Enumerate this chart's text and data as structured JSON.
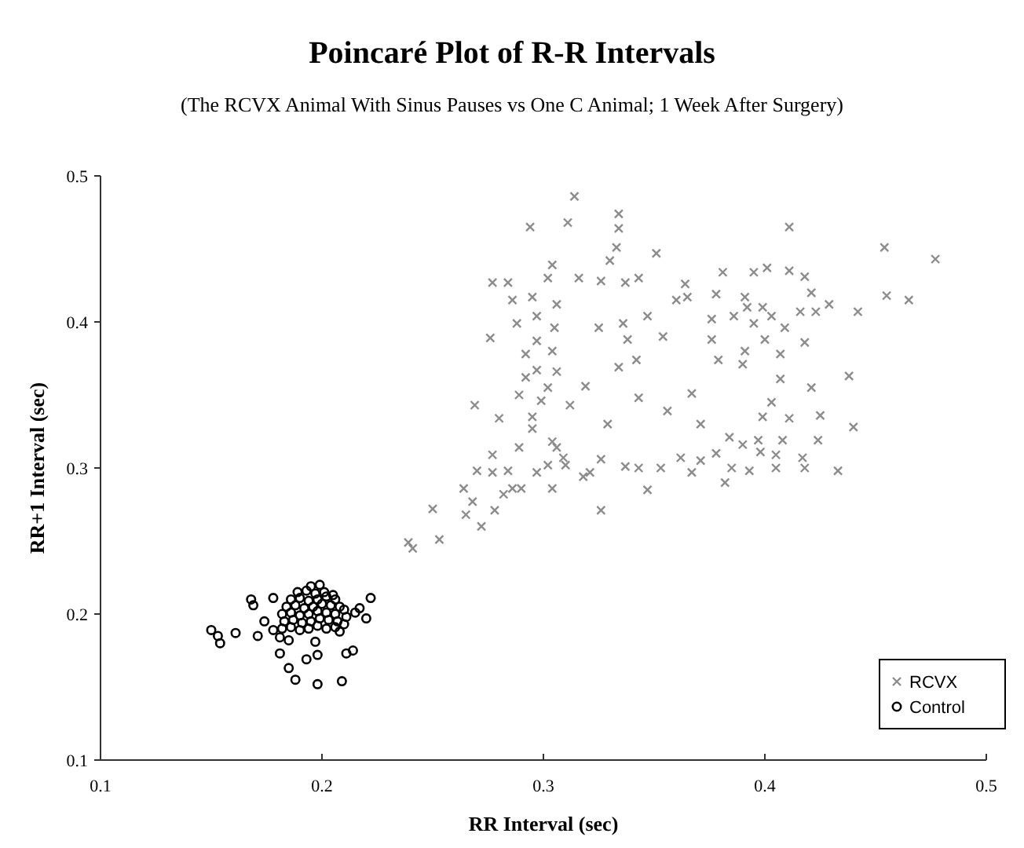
{
  "chart_data": {
    "type": "scatter",
    "title": "Poincaré Plot of R-R Intervals",
    "subtitle": "(The RCVX Animal With Sinus Pauses vs One C Animal; 1 Week After Surgery)",
    "xlabel": "RR  Interval (sec)",
    "ylabel": "RR+1  Interval (sec)",
    "xlim": [
      0.1,
      0.5
    ],
    "ylim": [
      0.1,
      0.5
    ],
    "xticks": [
      0.1,
      0.2,
      0.3,
      0.4,
      0.5
    ],
    "yticks": [
      0.1,
      0.2,
      0.3,
      0.4,
      0.5
    ],
    "grid": false,
    "legend": "bottom right",
    "series": [
      {
        "name": "RCVX",
        "color": "#8c8c8c",
        "marker": "cross",
        "x": [
          0.314,
          0.294,
          0.311,
          0.334,
          0.334,
          0.333,
          0.351,
          0.33,
          0.411,
          0.454,
          0.477,
          0.277,
          0.284,
          0.304,
          0.302,
          0.316,
          0.326,
          0.337,
          0.343,
          0.286,
          0.295,
          0.306,
          0.288,
          0.297,
          0.276,
          0.305,
          0.325,
          0.336,
          0.347,
          0.338,
          0.354,
          0.36,
          0.365,
          0.364,
          0.381,
          0.395,
          0.401,
          0.411,
          0.418,
          0.378,
          0.391,
          0.386,
          0.392,
          0.403,
          0.399,
          0.421,
          0.429,
          0.423,
          0.442,
          0.416,
          0.455,
          0.465,
          0.376,
          0.395,
          0.409,
          0.376,
          0.4,
          0.418,
          0.391,
          0.379,
          0.39,
          0.407,
          0.407,
          0.438,
          0.421,
          0.403,
          0.399,
          0.411,
          0.425,
          0.44,
          0.424,
          0.397,
          0.384,
          0.39,
          0.398,
          0.405,
          0.408,
          0.417,
          0.418,
          0.433,
          0.405,
          0.393,
          0.385,
          0.382,
          0.378,
          0.371,
          0.367,
          0.362,
          0.371,
          0.367,
          0.356,
          0.343,
          0.329,
          0.334,
          0.342,
          0.319,
          0.312,
          0.306,
          0.297,
          0.292,
          0.304,
          0.297,
          0.292,
          0.289,
          0.299,
          0.302,
          0.295,
          0.28,
          0.269,
          0.295,
          0.289,
          0.277,
          0.304,
          0.31,
          0.302,
          0.297,
          0.29,
          0.284,
          0.282,
          0.277,
          0.27,
          0.264,
          0.268,
          0.278,
          0.265,
          0.272,
          0.25,
          0.253,
          0.239,
          0.241,
          0.309,
          0.306,
          0.318,
          0.321,
          0.326,
          0.326,
          0.337,
          0.343,
          0.347,
          0.353,
          0.304,
          0.286
        ],
        "values": [
          0.486,
          0.465,
          0.468,
          0.474,
          0.464,
          0.451,
          0.447,
          0.442,
          0.465,
          0.451,
          0.443,
          0.427,
          0.427,
          0.439,
          0.43,
          0.43,
          0.428,
          0.427,
          0.43,
          0.415,
          0.417,
          0.412,
          0.399,
          0.404,
          0.389,
          0.396,
          0.396,
          0.399,
          0.404,
          0.388,
          0.39,
          0.415,
          0.417,
          0.426,
          0.434,
          0.434,
          0.437,
          0.435,
          0.431,
          0.419,
          0.417,
          0.404,
          0.41,
          0.404,
          0.41,
          0.42,
          0.412,
          0.407,
          0.407,
          0.407,
          0.418,
          0.415,
          0.402,
          0.399,
          0.396,
          0.388,
          0.388,
          0.386,
          0.38,
          0.374,
          0.371,
          0.378,
          0.361,
          0.363,
          0.355,
          0.345,
          0.335,
          0.334,
          0.336,
          0.328,
          0.319,
          0.319,
          0.321,
          0.316,
          0.311,
          0.309,
          0.319,
          0.307,
          0.3,
          0.298,
          0.3,
          0.298,
          0.3,
          0.29,
          0.31,
          0.305,
          0.297,
          0.307,
          0.33,
          0.351,
          0.339,
          0.348,
          0.33,
          0.369,
          0.374,
          0.356,
          0.343,
          0.366,
          0.367,
          0.378,
          0.38,
          0.387,
          0.362,
          0.35,
          0.346,
          0.355,
          0.335,
          0.334,
          0.343,
          0.327,
          0.314,
          0.309,
          0.318,
          0.302,
          0.302,
          0.297,
          0.286,
          0.298,
          0.282,
          0.297,
          0.298,
          0.286,
          0.277,
          0.271,
          0.268,
          0.26,
          0.272,
          0.251,
          0.249,
          0.245,
          0.307,
          0.314,
          0.294,
          0.297,
          0.306,
          0.271,
          0.301,
          0.3,
          0.285,
          0.3,
          0.286,
          0.286
        ]
      },
      {
        "name": "Control",
        "color": "#000000",
        "marker": "circle",
        "x": [
          0.15,
          0.153,
          0.154,
          0.161,
          0.168,
          0.169,
          0.171,
          0.174,
          0.178,
          0.181,
          0.185,
          0.188,
          0.193,
          0.198,
          0.198,
          0.209,
          0.211,
          0.214,
          0.22,
          0.222,
          0.217,
          0.178,
          0.181,
          0.185,
          0.197,
          0.208,
          0.215,
          0.182,
          0.186,
          0.19,
          0.194,
          0.198,
          0.202,
          0.206,
          0.21,
          0.183,
          0.187,
          0.191,
          0.195,
          0.199,
          0.203,
          0.207,
          0.211,
          0.182,
          0.186,
          0.19,
          0.194,
          0.198,
          0.202,
          0.206,
          0.21,
          0.184,
          0.188,
          0.192,
          0.196,
          0.2,
          0.204,
          0.208,
          0.186,
          0.19,
          0.194,
          0.198,
          0.202,
          0.206,
          0.189,
          0.193,
          0.197,
          0.201,
          0.205,
          0.195,
          0.199
        ],
        "values": [
          0.189,
          0.185,
          0.18,
          0.187,
          0.21,
          0.206,
          0.185,
          0.195,
          0.211,
          0.173,
          0.163,
          0.155,
          0.169,
          0.152,
          0.172,
          0.154,
          0.173,
          0.175,
          0.197,
          0.211,
          0.204,
          0.189,
          0.184,
          0.182,
          0.181,
          0.188,
          0.201,
          0.19,
          0.191,
          0.189,
          0.19,
          0.192,
          0.19,
          0.191,
          0.193,
          0.195,
          0.196,
          0.194,
          0.195,
          0.197,
          0.196,
          0.195,
          0.198,
          0.2,
          0.201,
          0.199,
          0.2,
          0.202,
          0.201,
          0.2,
          0.203,
          0.205,
          0.206,
          0.204,
          0.205,
          0.207,
          0.206,
          0.205,
          0.21,
          0.211,
          0.209,
          0.21,
          0.212,
          0.21,
          0.215,
          0.216,
          0.214,
          0.215,
          0.213,
          0.219,
          0.22
        ]
      }
    ]
  }
}
